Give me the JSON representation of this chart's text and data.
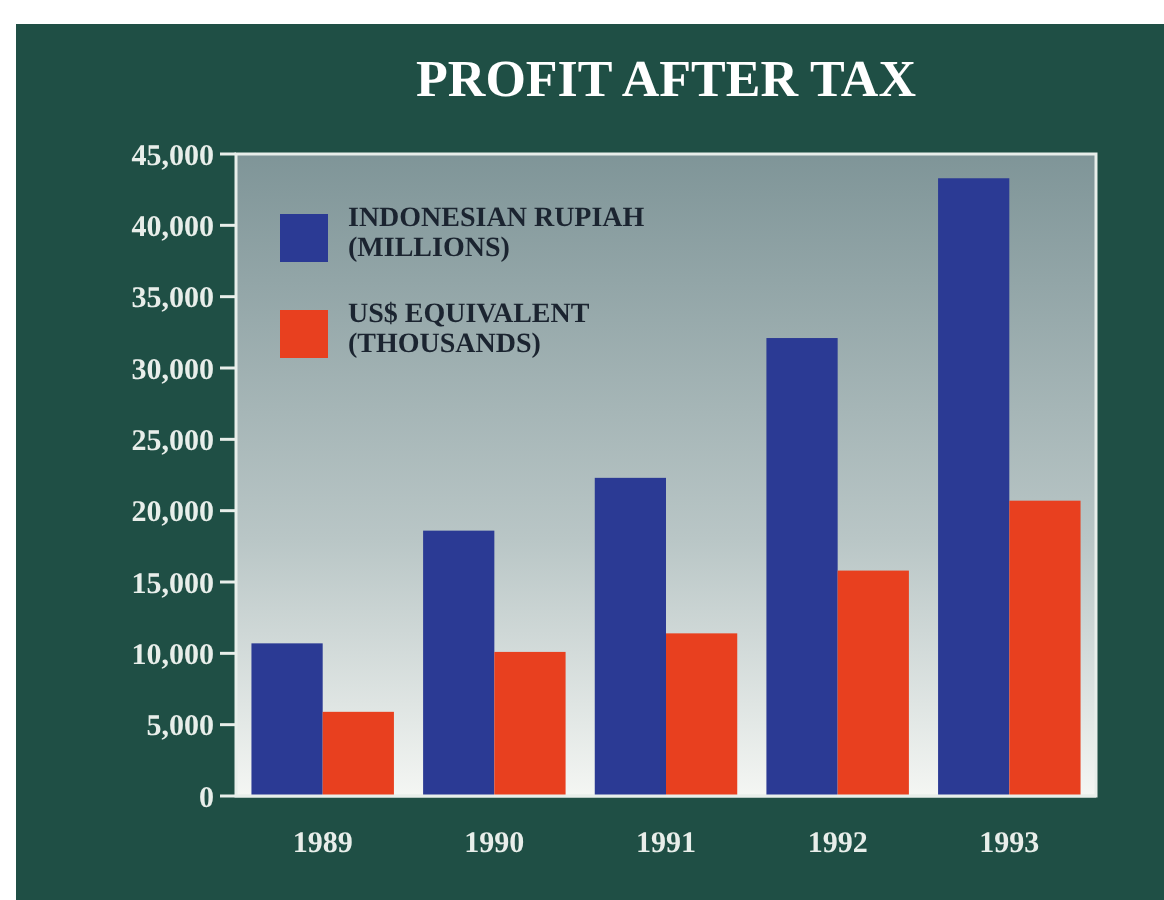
{
  "chart_data": {
    "type": "bar",
    "title": "PROFIT AFTER TAX",
    "categories": [
      "1989",
      "1990",
      "1991",
      "1992",
      "1993"
    ],
    "series": [
      {
        "name": "INDONESIAN RUPIAH\n(MILLIONS)",
        "color": "#2b3a94",
        "values": [
          10700,
          18600,
          22300,
          32100,
          43300
        ]
      },
      {
        "name": "US$ EQUIVALENT\n(THOUSANDS)",
        "color": "#e8401f",
        "values": [
          5900,
          10100,
          11400,
          15800,
          20700
        ]
      }
    ],
    "ylim": [
      0,
      45000
    ],
    "yticks": [
      {
        "value": 0,
        "label": "0"
      },
      {
        "value": 5000,
        "label": "5,000"
      },
      {
        "value": 10000,
        "label": "10,000"
      },
      {
        "value": 15000,
        "label": "15,000"
      },
      {
        "value": 20000,
        "label": "20,000"
      },
      {
        "value": 25000,
        "label": "25,000"
      },
      {
        "value": 30000,
        "label": "30,000"
      },
      {
        "value": 35000,
        "label": "35,000"
      },
      {
        "value": 40000,
        "label": "40,000"
      },
      {
        "value": 45000,
        "label": "45,000"
      }
    ],
    "legend": "top left"
  }
}
